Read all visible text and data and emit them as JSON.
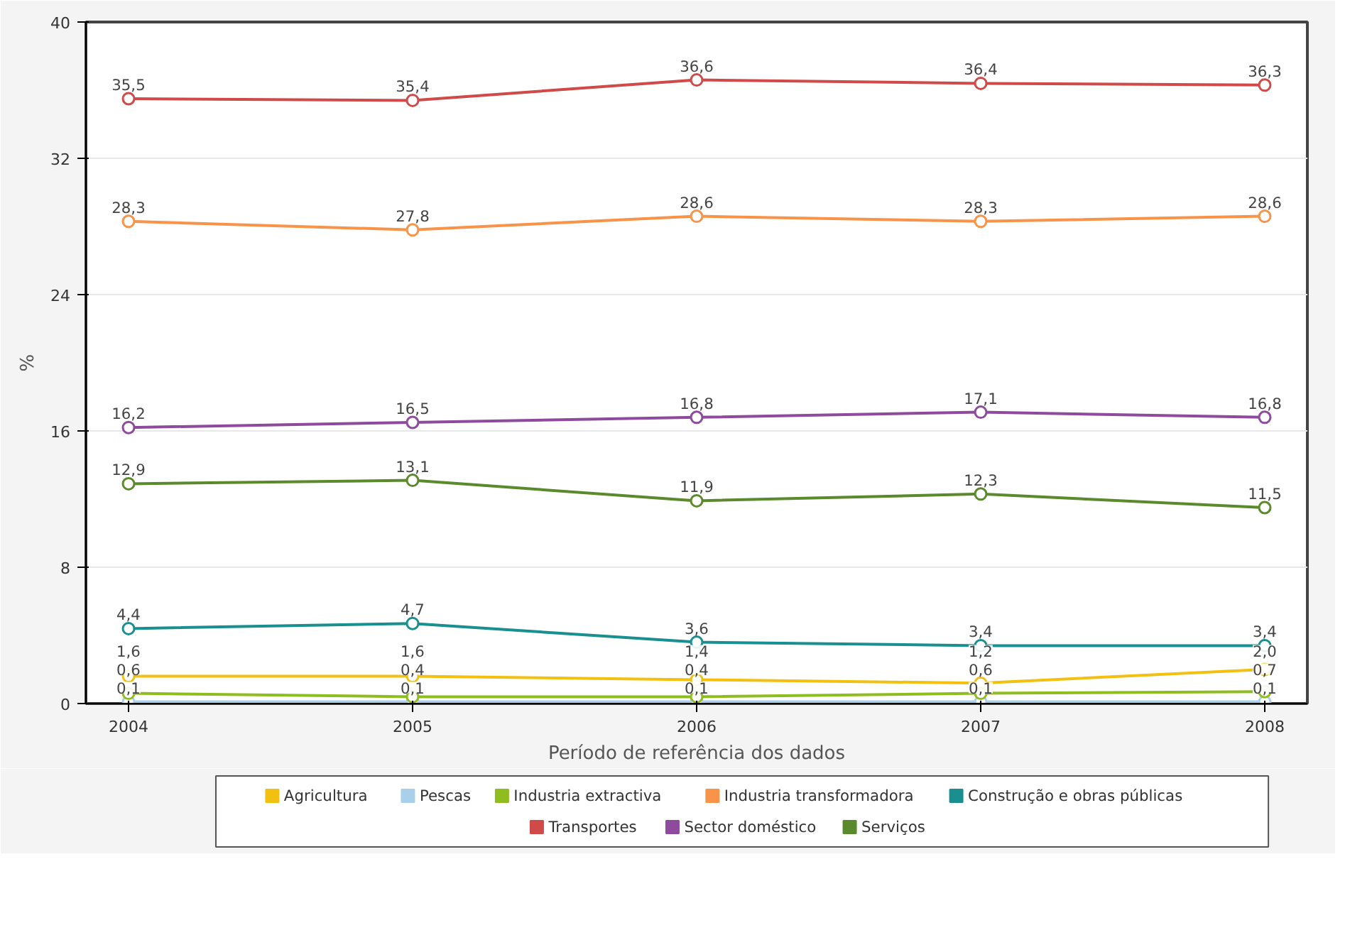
{
  "chart_data": {
    "type": "line",
    "xlabel": "Período de referência dos dados",
    "ylabel": "%",
    "categories": [
      "2004",
      "2005",
      "2006",
      "2007",
      "2008"
    ],
    "ylim": [
      0,
      40
    ],
    "yticks": [
      0,
      8,
      16,
      24,
      32,
      40
    ],
    "grid": "y",
    "legend": "bottom",
    "marker": "circle",
    "line_style": "solid",
    "series": [
      {
        "name": "Agricultura",
        "color": "#f2c010",
        "values": [
          1.6,
          1.6,
          1.4,
          1.2,
          2.0
        ],
        "value_labels": [
          "1,6",
          "1,6",
          "1,4",
          "1,2",
          "2,0"
        ]
      },
      {
        "name": "Pescas",
        "color": "#a8d0ea",
        "values": [
          0.1,
          0.1,
          0.1,
          0.1,
          0.1
        ],
        "value_labels": [
          "0,1",
          "0,1",
          "0,1",
          "0,1",
          "0,1"
        ]
      },
      {
        "name": "Industria extractiva",
        "color": "#8fbc1e",
        "values": [
          0.6,
          0.4,
          0.4,
          0.6,
          0.7
        ],
        "value_labels": [
          "0,6",
          "0,4",
          "0,4",
          "0,6",
          "0,7"
        ]
      },
      {
        "name": "Industria transformadora",
        "color": "#f7944a",
        "values": [
          28.3,
          27.8,
          28.6,
          28.3,
          28.6
        ],
        "value_labels": [
          "28,3",
          "27,8",
          "28,6",
          "28,3",
          "28,6"
        ]
      },
      {
        "name": "Construção e obras públicas",
        "color": "#1a8f8f",
        "values": [
          4.4,
          4.7,
          3.6,
          3.4,
          3.4
        ],
        "value_labels": [
          "4,4",
          "4,7",
          "3,6",
          "3,4",
          "3,4"
        ]
      },
      {
        "name": "Transportes",
        "color": "#d04a4a",
        "values": [
          35.5,
          35.4,
          36.6,
          36.4,
          36.3
        ],
        "value_labels": [
          "35,5",
          "35,4",
          "36,6",
          "36,4",
          "36,3"
        ]
      },
      {
        "name": "Sector doméstico",
        "color": "#8e4b9e",
        "values": [
          16.2,
          16.5,
          16.8,
          17.1,
          16.8
        ],
        "value_labels": [
          "16,2",
          "16,5",
          "16,8",
          "17,1",
          "16,8"
        ]
      },
      {
        "name": "Serviços",
        "color": "#5a8a2c",
        "values": [
          12.9,
          13.1,
          11.9,
          12.3,
          11.5
        ],
        "value_labels": [
          "12,9",
          "13,1",
          "11,9",
          "12,3",
          "11,5"
        ]
      }
    ]
  }
}
